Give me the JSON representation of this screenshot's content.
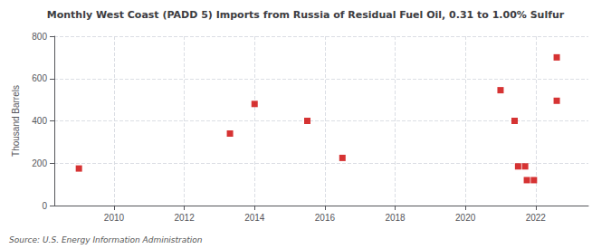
{
  "chart_data": {
    "type": "scatter",
    "title": "Monthly West Coast (PADD 5) Imports from Russia of Residual Fuel Oil, 0.31 to 1.00% Sulfur",
    "ylabel": "Thousand Barrels",
    "source": "Source: U.S. Energy Information Administration",
    "x": [
      2009.0,
      2013.3,
      2014.0,
      2015.5,
      2016.5,
      2021.0,
      2021.4,
      2021.5,
      2021.7,
      2021.75,
      2021.95,
      2022.6,
      2022.6
    ],
    "values": [
      175,
      340,
      480,
      400,
      225,
      545,
      400,
      185,
      185,
      120,
      120,
      700,
      495
    ],
    "color": "#cc0000",
    "marker": "square",
    "xlim": [
      2008.3,
      2023.5
    ],
    "xticks": [
      2010,
      2012,
      2014,
      2016,
      2018,
      2020,
      2022
    ],
    "ylim": [
      0,
      800
    ],
    "yticks": [
      0,
      200,
      400,
      600,
      800
    ],
    "grid": true
  }
}
